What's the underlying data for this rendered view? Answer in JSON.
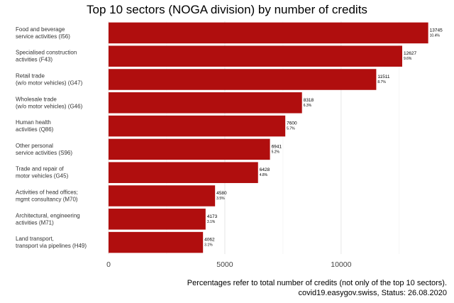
{
  "chart_data": {
    "type": "bar",
    "orientation": "horizontal",
    "title": "Top 10 sectors (NOGA division) by number of credits",
    "xlabel": "",
    "ylabel": "",
    "xlim": [
      0,
      14000
    ],
    "grid": true,
    "categories": [
      [
        "Food and beverage",
        "service activities (I56)"
      ],
      [
        "Specialised construction",
        "activities (F43)"
      ],
      [
        "Retail trade",
        "(w/o motor vehicles) (G47)"
      ],
      [
        "Wholesale trade",
        "(w/o motor vehicles) (G46)"
      ],
      [
        "Human health",
        "activities (Q86)"
      ],
      [
        "Other personal",
        "service activities (S96)"
      ],
      [
        "Trade and repair of",
        "motor vehicles (G45)"
      ],
      [
        "Activities of head offices;",
        "mgmt consultancy (M70)"
      ],
      [
        "Architectural, engineering",
        "activities (M71)"
      ],
      [
        "Land transport,",
        "transport via pipelines (H49)"
      ]
    ],
    "values": [
      13745,
      12627,
      11511,
      8318,
      7600,
      6941,
      6428,
      4580,
      4173,
      4062
    ],
    "percent_labels": [
      "10.4%",
      "9.6%",
      "8.7%",
      "6.3%",
      "5.7%",
      "5.2%",
      "4.8%",
      "3.5%",
      "3.1%",
      "3.1%"
    ],
    "x_ticks": [
      0,
      5000,
      10000
    ],
    "bar_color": "#b00e0e"
  },
  "captions": {
    "line1": "Percentages refer to total number of credits (not only of the top 10 sectors).",
    "line2": "covid19.easygov.swiss, Status: 26.08.2020"
  }
}
